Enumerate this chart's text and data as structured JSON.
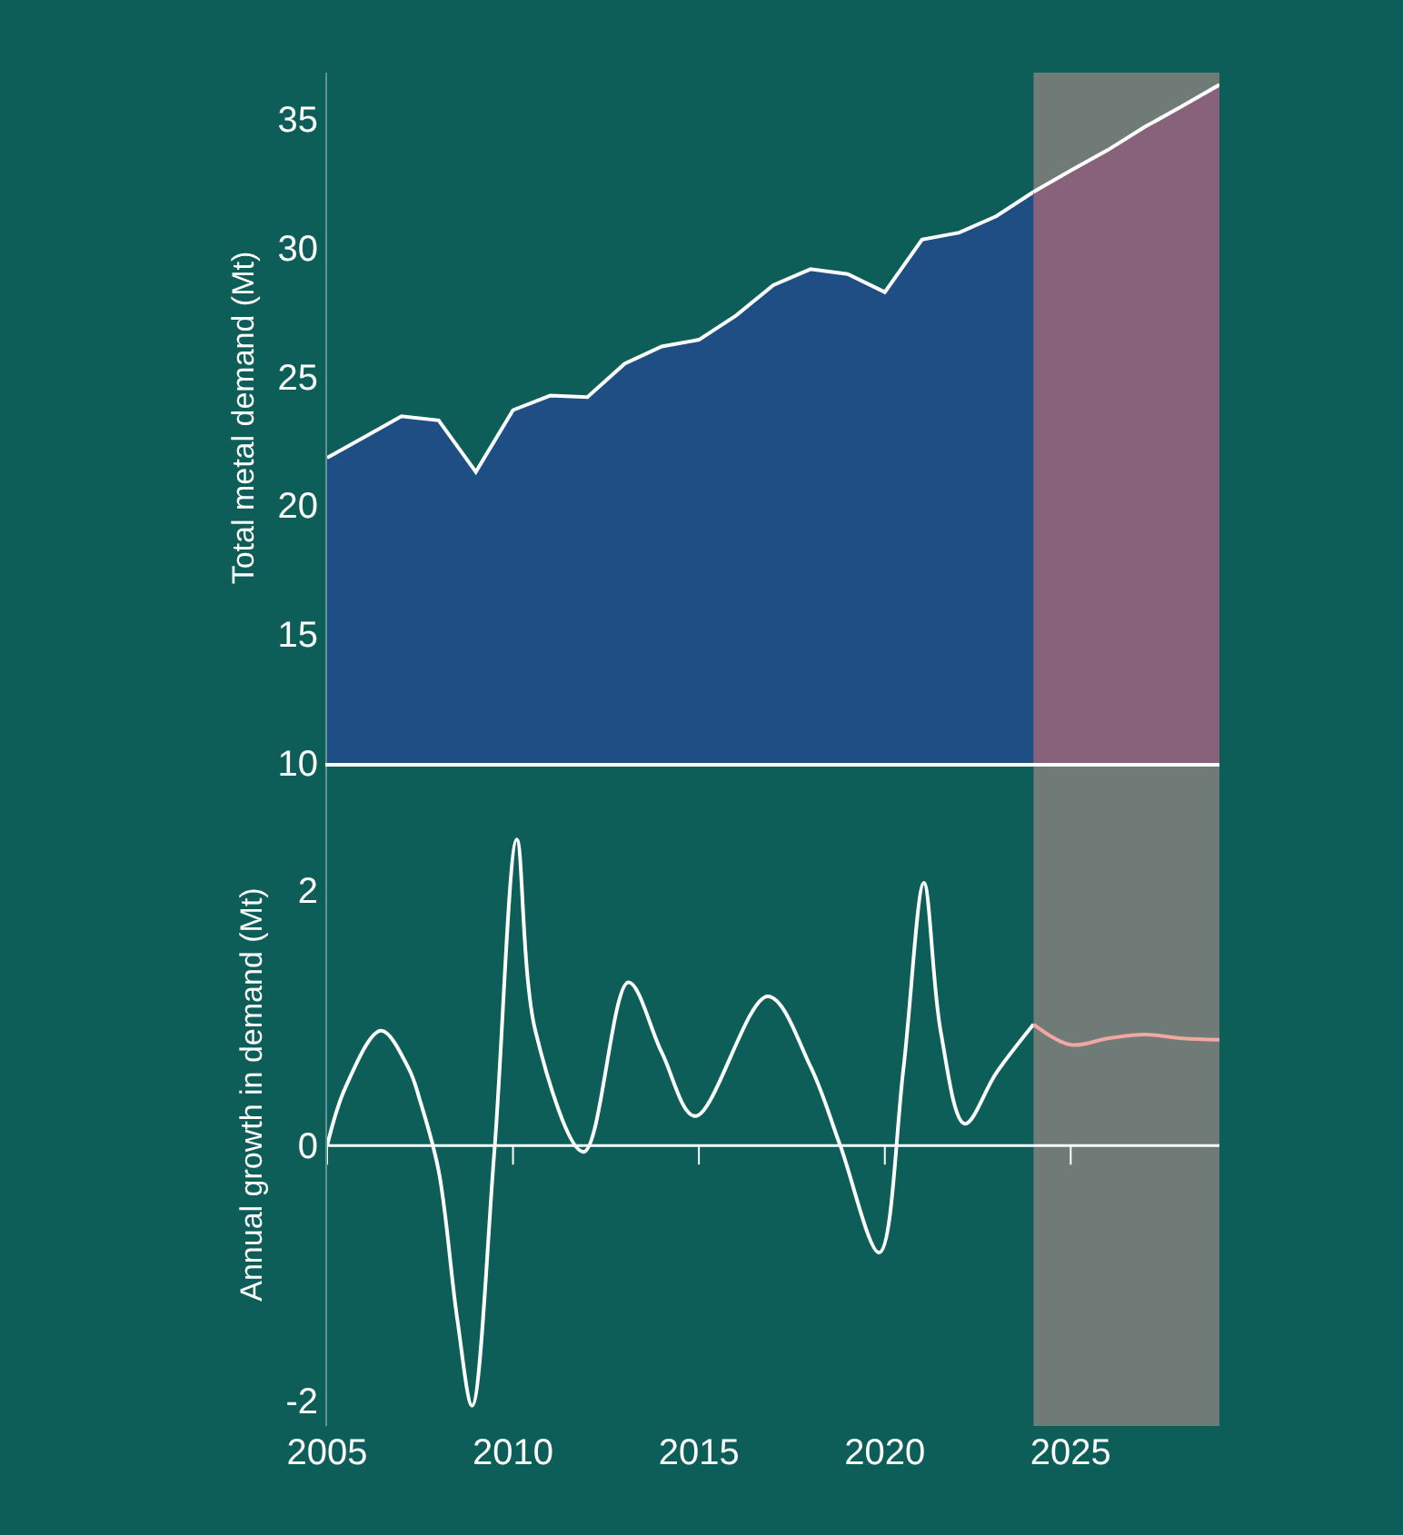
{
  "chart_data": [
    {
      "type": "area",
      "ylabel": "Total metal demand (Mt)",
      "x": [
        2005,
        2006,
        2007,
        2008,
        2009,
        2010,
        2011,
        2012,
        2013,
        2014,
        2015,
        2016,
        2017,
        2018,
        2019,
        2020,
        2021,
        2022,
        2023,
        2024,
        2025,
        2026,
        2027,
        2028,
        2029
      ],
      "series": [
        {
          "color": "#1f4e85",
          "values": [
            21.85,
            22.65,
            23.46,
            23.3,
            21.3,
            23.7,
            24.26,
            24.2,
            25.5,
            26.17,
            26.43,
            27.37,
            28.55,
            29.17,
            28.98,
            28.28,
            30.32,
            30.59,
            31.23,
            32.17,
            null,
            null,
            null,
            null,
            null
          ]
        },
        {
          "color": "#87627a",
          "values": [
            null,
            null,
            null,
            null,
            null,
            null,
            null,
            null,
            null,
            null,
            null,
            null,
            null,
            null,
            null,
            null,
            null,
            null,
            null,
            32.17,
            33.0,
            33.8,
            34.7,
            35.5,
            36.33
          ]
        }
      ],
      "xlim": [
        2005,
        2029
      ],
      "ylim": [
        10,
        36.8
      ],
      "yticks": [
        10,
        15,
        20,
        25,
        30,
        35
      ],
      "tick_labels": "y",
      "grid": false,
      "bands": [
        {
          "axis": "x",
          "from": 2024,
          "to": 2029,
          "color": "#e8a0a0"
        }
      ]
    },
    {
      "type": "line",
      "ylabel": "Annual growth in demand (Mt)",
      "series": [
        {
          "color": "#ffffff",
          "x": [
            2005,
            2005.5,
            2006.45,
            2007.2,
            2007.5,
            2008,
            2008.5,
            2008.9,
            2009.5,
            2010.1,
            2010.6,
            2011.9,
            2013.1,
            2014.0,
            2014.9,
            2016.85,
            2018.0,
            2018.8,
            2019.85,
            2020.5,
            2021.05,
            2021.5,
            2022.15,
            2023.0,
            2024.0
          ],
          "values": [
            0,
            0.46,
            0.9,
            0.6,
            0.35,
            -0.2,
            -1.36,
            -2.04,
            -0.04,
            2.4,
            0.9,
            -0.05,
            1.28,
            0.73,
            0.23,
            1.17,
            0.62,
            0,
            -0.84,
            0.6,
            2.06,
            0.9,
            0.17,
            0.57,
            0.95
          ]
        },
        {
          "color": "#f0a8a0",
          "x": [
            2024.0,
            2025.0,
            2026.0,
            2027.0,
            2028.0,
            2029.0
          ],
          "values": [
            0.95,
            0.79,
            0.84,
            0.87,
            0.84,
            0.83
          ]
        }
      ],
      "xlim": [
        2005,
        2029
      ],
      "xticks": [
        2005,
        2010,
        2015,
        2020,
        2025
      ],
      "ylim": [
        -2.2,
        3.0
      ],
      "yticks": [
        -2,
        0,
        2
      ],
      "grid": false,
      "ref_lines": [
        {
          "axis": "y",
          "value": 0
        }
      ],
      "bands": [
        {
          "axis": "x",
          "from": 2024,
          "to": 2029,
          "color": "#e8a0a0"
        }
      ]
    }
  ]
}
